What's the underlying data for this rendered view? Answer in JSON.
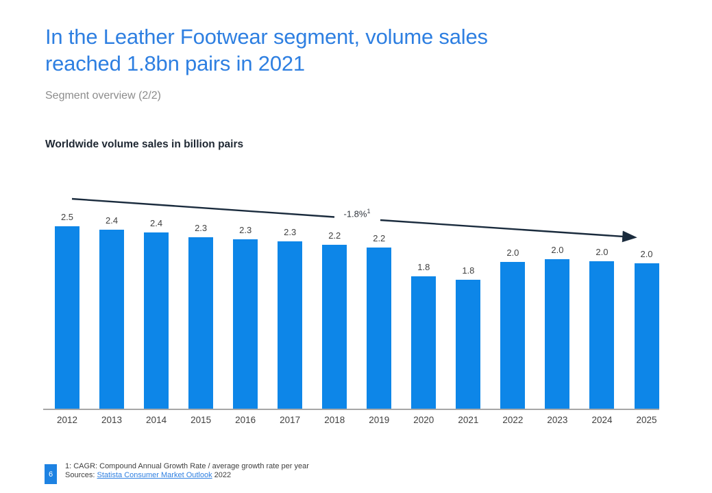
{
  "header": {
    "title_lines": [
      "In the Leather Footwear segment, volume sales",
      "reached 1.8bn pairs in 2021"
    ],
    "subtitle": "Segment overview (2/2)",
    "title_color": "#2e7fe1"
  },
  "chart_section": {
    "title": "Worldwide volume sales in billion pairs"
  },
  "chart_data": {
    "type": "bar",
    "title": "Worldwide volume sales in billion pairs",
    "categories": [
      "2012",
      "2013",
      "2014",
      "2015",
      "2016",
      "2017",
      "2018",
      "2019",
      "2020",
      "2021",
      "2022",
      "2023",
      "2024",
      "2025"
    ],
    "values": [
      2.5,
      2.4,
      2.4,
      2.3,
      2.3,
      2.3,
      2.2,
      2.2,
      1.8,
      1.8,
      2.0,
      2.0,
      2.0,
      2.0
    ],
    "value_labels": [
      "2.5",
      "2.4",
      "2.4",
      "2.3",
      "2.3",
      "2.3",
      "2.2",
      "2.2",
      "1.8",
      "1.8",
      "2.0",
      "2.0",
      "2.0",
      "2.0"
    ],
    "values_est": [
      2.5,
      2.45,
      2.42,
      2.35,
      2.32,
      2.29,
      2.25,
      2.21,
      1.81,
      1.77,
      2.01,
      2.05,
      2.02,
      1.99
    ],
    "ylim": [
      0,
      2.8
    ],
    "grid": false,
    "bar_color": "#0d86e8",
    "trend_color": "#1a2b3d",
    "annotation": {
      "label": "-1.8%",
      "superscript": "1"
    }
  },
  "footer": {
    "page_number": "6",
    "badge_color": "#1d82e2",
    "footnote": "1: CAGR: Compound Annual Growth Rate / average growth rate per year",
    "sources_prefix": "Sources:",
    "source_link": "Statista Consumer Market Outlook",
    "source_year": "2022",
    "link_color": "#2e7fe1"
  }
}
